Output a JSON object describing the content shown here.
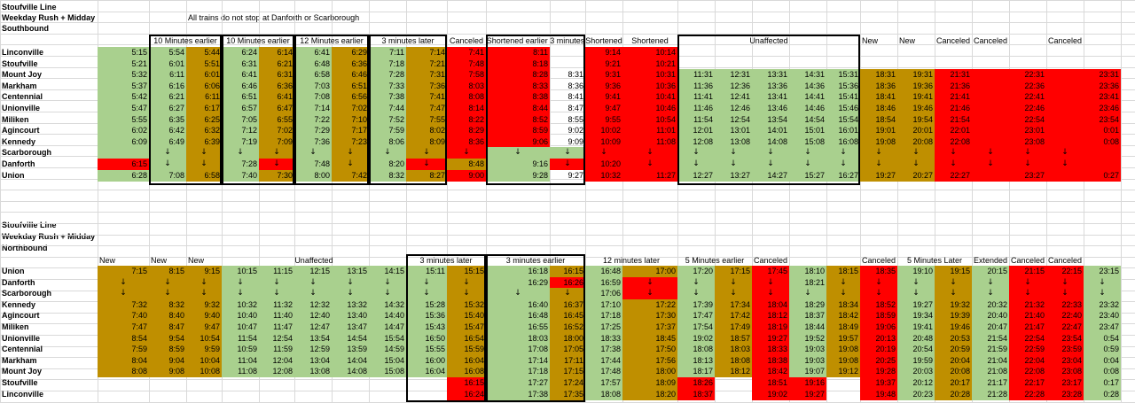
{
  "colors": {
    "g": "#a9d08e",
    "o": "#bf8f00",
    "x": "#ff0000",
    "gridline": "#d9d9d9",
    "border": "#000000"
  },
  "icons": {
    "down_arrow": "down-arrow-icon"
  },
  "southbound": {
    "title": "Stoufville Line",
    "subtitle": "Weekday  Rush + Midday",
    "note": "All trains do not stop at Danforth or Scarborough",
    "direction": "Southbound",
    "group_headers": [
      "10 Minutes earlier",
      "10 Minutes earlier",
      "12 Minutes earlier",
      "3 minutes later",
      "Canceled",
      "Shortened earlier 3 minutes",
      "Shortened",
      "Shortened",
      "Unaffected",
      "New",
      "New",
      "Canceled",
      "Canceled",
      "Canceled"
    ],
    "stations": [
      "Linconville",
      "Stoufville",
      "Mount Joy",
      "Markham",
      "Centennial",
      "Unionville",
      "Miliken",
      "Agincourt",
      "Kennedy",
      "Scarborough",
      "Danforth",
      "Union"
    ],
    "rows": [
      [
        "5:15",
        "5:54",
        "5:44",
        "6:24",
        "6:14",
        "6:41",
        "6:29",
        "7:11",
        "7:14",
        "7:41",
        "8:11",
        "",
        "9:14",
        "10:14",
        "",
        "",
        "",
        "",
        "",
        "",
        "",
        "",
        "",
        "",
        "",
        ""
      ],
      [
        "5:21",
        "6:01",
        "5:51",
        "6:31",
        "6:21",
        "6:48",
        "6:36",
        "7:18",
        "7:21",
        "7:48",
        "8:18",
        "",
        "9:21",
        "10:21",
        "",
        "",
        "",
        "",
        "",
        "",
        "",
        "",
        "",
        "",
        "",
        ""
      ],
      [
        "5:32",
        "6:11",
        "6:01",
        "6:41",
        "6:31",
        "6:58",
        "6:46",
        "7:28",
        "7:31",
        "7:58",
        "8:28",
        "8:31",
        "9:31",
        "10:31",
        "11:31",
        "12:31",
        "13:31",
        "14:31",
        "15:31",
        "18:31",
        "19:31",
        "21:31",
        "",
        "22:31",
        "",
        "23:31"
      ],
      [
        "5:37",
        "6:16",
        "6:06",
        "6:46",
        "6:36",
        "7:03",
        "6:51",
        "7:33",
        "7:36",
        "8:03",
        "8:33",
        "8:36",
        "9:36",
        "10:36",
        "11:36",
        "12:36",
        "13:36",
        "14:36",
        "15:36",
        "18:36",
        "19:36",
        "21:36",
        "",
        "22:36",
        "",
        "23:36"
      ],
      [
        "5:42",
        "6:21",
        "6:11",
        "6:51",
        "6:41",
        "7:08",
        "6:56",
        "7:38",
        "7:41",
        "8:08",
        "8:38",
        "8:41",
        "9:41",
        "10:41",
        "11:41",
        "12:41",
        "13:41",
        "14:41",
        "15:41",
        "18:41",
        "19:41",
        "21:41",
        "",
        "22:41",
        "",
        "23:41"
      ],
      [
        "5:47",
        "6:27",
        "6:17",
        "6:57",
        "6:47",
        "7:14",
        "7:02",
        "7:44",
        "7:47",
        "8:14",
        "8:44",
        "8:47",
        "9:47",
        "10:46",
        "11:46",
        "12:46",
        "13:46",
        "14:46",
        "15:46",
        "18:46",
        "19:46",
        "21:46",
        "",
        "22:46",
        "",
        "23:46"
      ],
      [
        "5:55",
        "6:35",
        "6:25",
        "7:05",
        "6:55",
        "7:22",
        "7:10",
        "7:52",
        "7:55",
        "8:22",
        "8:52",
        "8:55",
        "9:55",
        "10:54",
        "11:54",
        "12:54",
        "13:54",
        "14:54",
        "15:54",
        "18:54",
        "19:54",
        "21:54",
        "",
        "22:54",
        "",
        "23:54"
      ],
      [
        "6:02",
        "6:42",
        "6:32",
        "7:12",
        "7:02",
        "7:29",
        "7:17",
        "7:59",
        "8:02",
        "8:29",
        "8:59",
        "9:02",
        "10:02",
        "11:01",
        "12:01",
        "13:01",
        "14:01",
        "15:01",
        "16:01",
        "19:01",
        "20:01",
        "22:01",
        "",
        "23:01",
        "",
        "0:01"
      ],
      [
        "6:09",
        "6:49",
        "6:39",
        "7:19",
        "7:09",
        "7:36",
        "7:23",
        "8:06",
        "8:09",
        "8:36",
        "9:06",
        "9:09",
        "10:09",
        "11:08",
        "12:08",
        "13:08",
        "14:08",
        "15:08",
        "16:08",
        "19:08",
        "20:08",
        "22:08",
        "",
        "23:08",
        "",
        "0:08"
      ],
      [
        "",
        "↓",
        "↓",
        "↓",
        "↓",
        "↓",
        "↓",
        "↓",
        "↓",
        "↓",
        "↓",
        "↓",
        "↓",
        "↓",
        "↓",
        "↓",
        "↓",
        "↓",
        "↓",
        "↓",
        "↓",
        "↓",
        "↓",
        "↓",
        "↓",
        ""
      ],
      [
        "6:15",
        "↓",
        "↓",
        "7:28",
        "↓",
        "7:48",
        "↓",
        "8:20",
        "↓",
        "8:48",
        "9:16",
        "↓",
        "10:20",
        "↓",
        "↓",
        "↓",
        "↓",
        "↓",
        "↓",
        "↓",
        "↓",
        "↓",
        "↓",
        "↓",
        "↓",
        ""
      ],
      [
        "6:28",
        "7:08",
        "6:58",
        "7:40",
        "7:30",
        "8:00",
        "7:42",
        "8:32",
        "8:27",
        "9:00",
        "9:28",
        "9:27",
        "10:32",
        "11:27",
        "12:27",
        "13:27",
        "14:27",
        "15:27",
        "16:27",
        "19:27",
        "20:27",
        "22:27",
        "",
        "23:27",
        "",
        "0:27"
      ]
    ]
  },
  "northbound": {
    "title": "Stoufville Line",
    "subtitle": "Weekday  Rush + Midday",
    "direction": "Northbound",
    "group_headers": [
      "New",
      "New",
      "New",
      "Unaffected",
      "3 minutes later",
      "3 minutes earlier",
      "12 minutes later",
      "5 Minutes earlier",
      "Canceled",
      "Canceled",
      "5 Minutes Later",
      "Extended",
      "Canceled",
      "Canceled"
    ],
    "stations": [
      "Union",
      "Danforth",
      "Scarborough",
      "Kennedy",
      "Agincourt",
      "Miliken",
      "Unionville",
      "Centennial",
      "Markham",
      "Mount Joy",
      "Stoufville",
      "Linconville"
    ],
    "rows": [
      [
        "7:15",
        "8:15",
        "9:15",
        "10:15",
        "11:15",
        "12:15",
        "13:15",
        "14:15",
        "15:11",
        "15:15",
        "16:18",
        "16:15",
        "16:48",
        "17:00",
        "17:20",
        "17:15",
        "17:45",
        "18:10",
        "18:15",
        "18:35",
        "19:10",
        "19:15",
        "20:15",
        "21:15",
        "22:15",
        "23:15"
      ],
      [
        "↓",
        "↓",
        "↓",
        "↓",
        "↓",
        "↓",
        "↓",
        "↓",
        "↓",
        "↓",
        "16:29",
        "16:26",
        "16:59",
        "↓",
        "↓",
        "↓",
        "↓",
        "18:21",
        "↓",
        "↓",
        "↓",
        "↓",
        "↓",
        "↓",
        "↓",
        "↓"
      ],
      [
        "↓",
        "↓",
        "↓",
        "↓",
        "↓",
        "↓",
        "↓",
        "↓",
        "↓",
        "↓",
        "↓",
        "↓",
        "17:06",
        "↓",
        "↓",
        "↓",
        "↓",
        "↓",
        "↓",
        "↓",
        "↓",
        "↓",
        "↓",
        "↓",
        "↓",
        "↓"
      ],
      [
        "7:32",
        "8:32",
        "9:32",
        "10:32",
        "11:32",
        "12:32",
        "13:32",
        "14:32",
        "15:28",
        "15:32",
        "16:40",
        "16:37",
        "17:10",
        "17:22",
        "17:39",
        "17:34",
        "18:04",
        "18:29",
        "18:34",
        "18:52",
        "19:27",
        "19:32",
        "20:32",
        "21:32",
        "22:33",
        "23:32"
      ],
      [
        "7:40",
        "8:40",
        "9:40",
        "10:40",
        "11:40",
        "12:40",
        "13:40",
        "14:40",
        "15:36",
        "15:40",
        "16:48",
        "16:45",
        "17:18",
        "17:30",
        "17:47",
        "17:42",
        "18:12",
        "18:37",
        "18:42",
        "18:59",
        "19:34",
        "19:39",
        "20:40",
        "21:40",
        "22:40",
        "23:40"
      ],
      [
        "7:47",
        "8:47",
        "9:47",
        "10:47",
        "11:47",
        "12:47",
        "13:47",
        "14:47",
        "15:43",
        "15:47",
        "16:55",
        "16:52",
        "17:25",
        "17:37",
        "17:54",
        "17:49",
        "18:19",
        "18:44",
        "18:49",
        "19:06",
        "19:41",
        "19:46",
        "20:47",
        "21:47",
        "22:47",
        "23:47"
      ],
      [
        "8:54",
        "9:54",
        "10:54",
        "11:54",
        "12:54",
        "13:54",
        "14:54",
        "15:54",
        "16:50",
        "16:54",
        "18:03",
        "18:00",
        "18:33",
        "18:45",
        "19:02",
        "18:57",
        "19:27",
        "19:52",
        "19:57",
        "20:13",
        "20:48",
        "20:53",
        "21:54",
        "22:54",
        "23:54",
        "0:54"
      ],
      [
        "7:59",
        "8:59",
        "9:59",
        "10:59",
        "11:59",
        "12:59",
        "13:59",
        "14:59",
        "15:55",
        "15:59",
        "17:08",
        "17:05",
        "17:38",
        "17:50",
        "18:08",
        "18:03",
        "18:33",
        "19:03",
        "19:08",
        "20:19",
        "20:54",
        "20:59",
        "21:59",
        "22:59",
        "23:59",
        "0:59"
      ],
      [
        "8:04",
        "9:04",
        "10:04",
        "11:04",
        "12:04",
        "13:04",
        "14:04",
        "15:04",
        "16:00",
        "16:04",
        "17:14",
        "17:11",
        "17:44",
        "17:56",
        "18:13",
        "18:08",
        "18:38",
        "19:03",
        "19:08",
        "20:25",
        "19:59",
        "20:04",
        "21:04",
        "22:04",
        "23:04",
        "0:04"
      ],
      [
        "8:08",
        "9:08",
        "10:08",
        "11:08",
        "12:08",
        "13:08",
        "14:08",
        "15:08",
        "16:04",
        "16:08",
        "17:18",
        "17:15",
        "17:48",
        "18:00",
        "18:17",
        "18:12",
        "18:42",
        "19:07",
        "19:12",
        "19:28",
        "20:03",
        "20:08",
        "21:08",
        "22:08",
        "23:08",
        "0:08"
      ],
      [
        "",
        "",
        "",
        "",
        "",
        "",
        "",
        "",
        "",
        "16:15",
        "17:27",
        "17:24",
        "17:57",
        "18:09",
        "18:26",
        "",
        "18:51",
        "19:16",
        "",
        "19:37",
        "20:12",
        "20:17",
        "21:17",
        "22:17",
        "23:17",
        "0:17"
      ],
      [
        "",
        "",
        "",
        "",
        "",
        "",
        "",
        "",
        "",
        "16:24",
        "17:38",
        "17:35",
        "18:08",
        "18:20",
        "18:37",
        "",
        "19:02",
        "19:27",
        "",
        "19:48",
        "20:23",
        "20:28",
        "21:28",
        "22:28",
        "23:28",
        "0:28"
      ]
    ]
  }
}
